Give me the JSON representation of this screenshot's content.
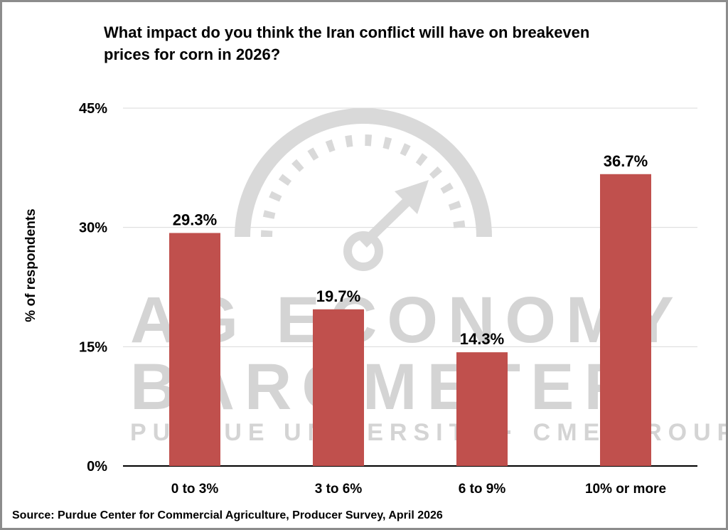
{
  "chart_data": {
    "type": "bar",
    "title": "What impact do you think the Iran conflict will have on breakeven prices for corn in 2026?",
    "title_lines": [
      "What impact do you think the Iran conflict will have on breakeven",
      "prices for corn in 2026?"
    ],
    "categories": [
      "0 to 3%",
      "3 to 6%",
      "6 to 9%",
      "10% or more"
    ],
    "values": [
      29.3,
      19.7,
      14.3,
      36.7
    ],
    "value_labels": [
      "29.3%",
      "19.7%",
      "14.3%",
      "36.7%"
    ],
    "ylabel": "% of respondents",
    "xlabel": "",
    "ylim": [
      0,
      45
    ],
    "yticks": [
      0,
      15,
      30,
      45
    ],
    "ytick_labels": [
      "0%",
      "15%",
      "30%",
      "45%"
    ],
    "grid": true,
    "bar_color": "#c0504d",
    "source": "Source: Purdue Center for Commercial Agriculture, Producer Survey, April 2026"
  },
  "watermark": {
    "line1": "AG ECONOMY",
    "line2": "BAROMETER",
    "line3": "PURDUE UNIVERSITY · CME GROUP",
    "color": "#d4d4d4"
  }
}
